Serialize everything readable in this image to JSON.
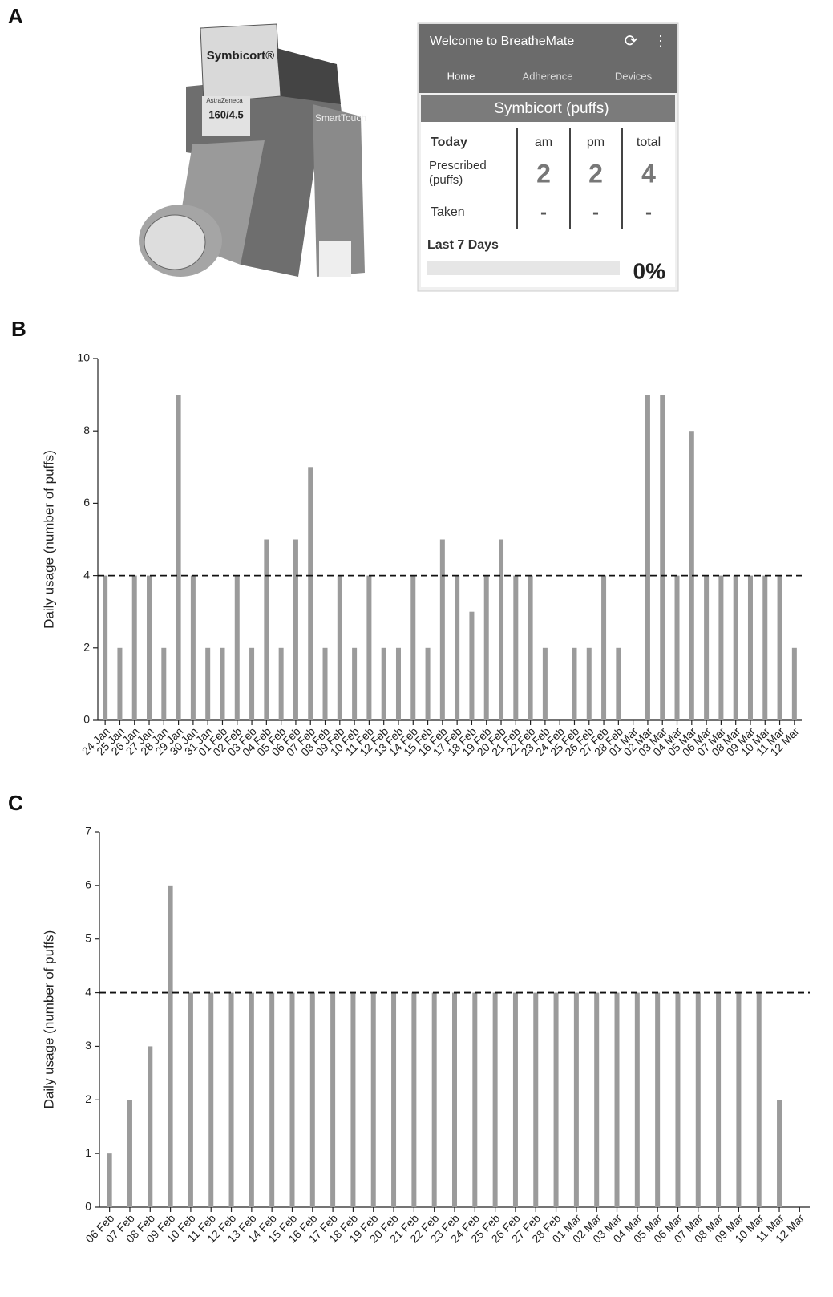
{
  "panel_labels": [
    "A",
    "B",
    "C"
  ],
  "panel_a": {
    "inhaler_labels": [
      "Symbicort®",
      "160/4.5",
      "AstraZeneca",
      "SmartTouch"
    ],
    "app": {
      "header_title": "Welcome to BreatheMate",
      "tabs": [
        "Home",
        "Adherence",
        "Devices"
      ],
      "card_title": "Symbicort (puffs)",
      "columns": [
        "Today",
        "am",
        "pm",
        "total"
      ],
      "rows": [
        [
          "Prescribed (puffs)",
          "2",
          "2",
          "4"
        ],
        [
          "Taken",
          "-",
          "-",
          "-"
        ]
      ],
      "summary_label": "Last 7 Days",
      "summary_value": "0%"
    }
  },
  "chart_data": [
    {
      "type": "bar",
      "ylabel": "Daily usage (number of puffs)",
      "color": "#9b9b9b",
      "categories": [
        "24 Jan",
        "25 Jan",
        "26 Jan",
        "27 Jan",
        "28 Jan",
        "29 Jan",
        "30 Jan",
        "31 Jan",
        "01 Feb",
        "02 Feb",
        "03 Feb",
        "04 Feb",
        "05 Feb",
        "06 Feb",
        "07 Feb",
        "08 Feb",
        "09 Feb",
        "10 Feb",
        "11 Feb",
        "12 Feb",
        "13 Feb",
        "14 Feb",
        "15 Feb",
        "16 Feb",
        "17 Feb",
        "18 Feb",
        "19 Feb",
        "20 Feb",
        "21 Feb",
        "22 Feb",
        "23 Feb",
        "24 Feb",
        "25 Feb",
        "26 Feb",
        "27 Feb",
        "28 Feb",
        "01 Mar",
        "02 Mar",
        "03 Mar",
        "04 Mar",
        "05 Mar",
        "06 Mar",
        "07 Mar",
        "08 Mar",
        "09 Mar",
        "10 Mar",
        "11 Mar",
        "12 Mar"
      ],
      "values": [
        4,
        2,
        4,
        4,
        2,
        9,
        4,
        2,
        2,
        4,
        2,
        5,
        2,
        5,
        7,
        2,
        4,
        2,
        4,
        2,
        2,
        4,
        2,
        5,
        4,
        3,
        4,
        5,
        4,
        4,
        2,
        0,
        2,
        2,
        4,
        2,
        0,
        9,
        9,
        4,
        8,
        4,
        4,
        4,
        4,
        4,
        4,
        2
      ],
      "ylim": [
        0,
        10
      ],
      "yticks": [
        0,
        2,
        4,
        6,
        8,
        10
      ],
      "reference_line": 4
    },
    {
      "type": "bar",
      "ylabel": "Daily usage (number of puffs)",
      "color": "#9b9b9b",
      "categories": [
        "06 Feb",
        "07 Feb",
        "08 Feb",
        "09 Feb",
        "10 Feb",
        "11 Feb",
        "12 Feb",
        "13 Feb",
        "14 Feb",
        "15 Feb",
        "16 Feb",
        "17 Feb",
        "18 Feb",
        "19 Feb",
        "20 Feb",
        "21 Feb",
        "22 Feb",
        "23 Feb",
        "24 Feb",
        "25 Feb",
        "26 Feb",
        "27 Feb",
        "28 Feb",
        "01 Mar",
        "02 Mar",
        "03 Mar",
        "04 Mar",
        "05 Mar",
        "06 Mar",
        "07 Mar",
        "08 Mar",
        "09 Mar",
        "10 Mar",
        "11 Mar",
        "12 Mar"
      ],
      "values": [
        1,
        2,
        3,
        6,
        4,
        4,
        4,
        4,
        4,
        4,
        4,
        4,
        4,
        4,
        4,
        4,
        4,
        4,
        4,
        4,
        4,
        4,
        4,
        4,
        4,
        4,
        4,
        4,
        4,
        4,
        4,
        4,
        4,
        2,
        0
      ],
      "ylim": [
        0,
        7
      ],
      "yticks": [
        0,
        1,
        2,
        3,
        4,
        5,
        6,
        7
      ],
      "reference_line": 4
    }
  ]
}
